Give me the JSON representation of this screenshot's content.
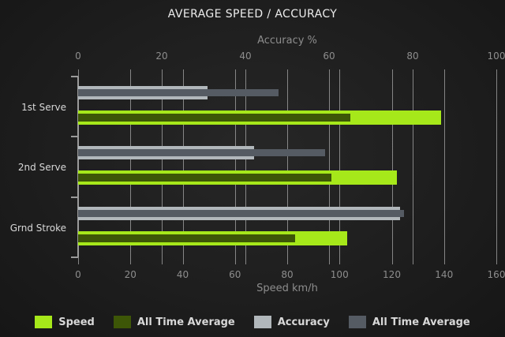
{
  "chart_data": {
    "type": "bar",
    "orientation": "horizontal",
    "title": "AVERAGE SPEED / ACCURACY",
    "categories": [
      "1st Serve",
      "2nd Serve",
      "Grnd Stroke"
    ],
    "series": [
      {
        "name": "Speed",
        "axis": "bottom",
        "color": "#a6e81a",
        "values": [
          139,
          122,
          103
        ]
      },
      {
        "name": "All Time Average",
        "axis": "bottom",
        "color": "#3d5607",
        "values": [
          104,
          97,
          83
        ]
      },
      {
        "name": "Accuracy",
        "axis": "top",
        "color": "#b1b7bb",
        "values": [
          31,
          42,
          77
        ]
      },
      {
        "name": "All Time Average",
        "axis": "top",
        "color": "#555b63",
        "values": [
          48,
          59,
          78
        ]
      }
    ],
    "top_axis": {
      "label": "Accuracy %",
      "min": 0,
      "max": 100,
      "ticks": [
        0,
        20,
        40,
        60,
        80,
        100
      ]
    },
    "bottom_axis": {
      "label": "Speed km/h",
      "min": 0,
      "max": 160,
      "ticks": [
        0,
        20,
        40,
        60,
        80,
        100,
        120,
        140,
        160
      ]
    },
    "grid": true,
    "legend_position": "bottom",
    "colors": {
      "background_center": "#272727",
      "background_edge": "#161616",
      "gridline": "#a8a8a8",
      "axis_text": "#8d8d8d",
      "category_text": "#d8d8d8",
      "title_text": "#ececec",
      "legend_text": "#d8d8d8"
    }
  }
}
